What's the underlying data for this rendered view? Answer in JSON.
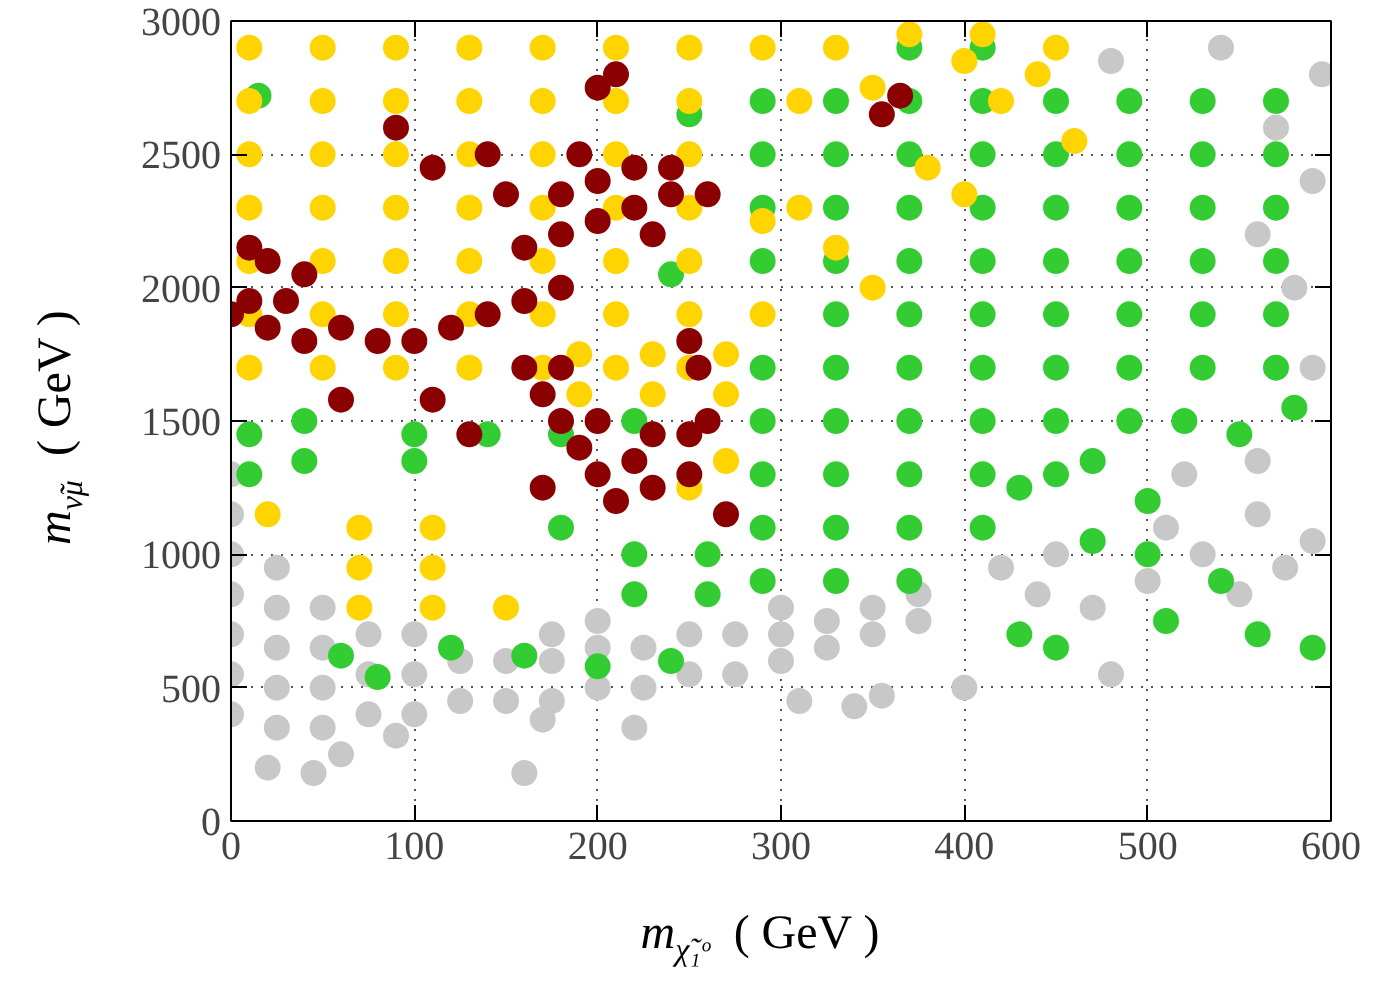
{
  "chart_data": {
    "type": "scatter",
    "xlabel": "m$_{χ̃₁ᵒ}$  ( GeV )",
    "ylabel": "m$_{ν̃μ}$  ( GeV )",
    "xlim": [
      0,
      600
    ],
    "ylim": [
      0,
      3000
    ],
    "xticks": [
      0,
      100,
      200,
      300,
      400,
      500,
      600
    ],
    "yticks": [
      0,
      500,
      1000,
      1500,
      2000,
      2500,
      3000
    ],
    "grid": true,
    "marker": "circle",
    "series": [
      {
        "color": "#c8c8c8",
        "x": [
          0,
          0,
          0,
          0,
          0,
          0,
          0,
          25,
          25,
          25,
          25,
          25,
          50,
          50,
          50,
          50,
          75,
          75,
          75,
          100,
          100,
          100,
          125,
          125,
          150,
          150,
          175,
          175,
          175,
          200,
          200,
          200,
          225,
          225,
          250,
          250,
          275,
          275,
          300,
          300,
          300,
          325,
          325,
          350,
          350,
          375,
          375,
          20,
          45,
          60,
          90,
          160,
          170,
          220,
          310,
          340,
          355,
          400,
          420,
          440,
          450,
          470,
          480,
          500,
          510,
          530,
          550,
          560,
          575,
          590,
          520,
          560,
          590,
          580,
          560,
          590,
          570,
          595,
          540,
          480
        ],
        "values": [
          400,
          550,
          700,
          850,
          1000,
          1150,
          1300,
          350,
          500,
          650,
          800,
          950,
          350,
          500,
          650,
          800,
          400,
          550,
          700,
          400,
          550,
          700,
          450,
          600,
          450,
          600,
          450,
          600,
          700,
          500,
          650,
          750,
          500,
          650,
          550,
          700,
          550,
          700,
          600,
          700,
          800,
          650,
          750,
          700,
          800,
          750,
          850,
          200,
          180,
          250,
          320,
          180,
          380,
          350,
          450,
          430,
          470,
          500,
          950,
          850,
          1000,
          800,
          550,
          900,
          1100,
          1000,
          850,
          1150,
          950,
          1050,
          1300,
          1350,
          1700,
          2000,
          2200,
          2400,
          2600,
          2800,
          2900,
          2850
        ]
      },
      {
        "color": "#33cc33",
        "x": [
          290,
          290,
          290,
          290,
          290,
          290,
          290,
          290,
          330,
          330,
          330,
          330,
          330,
          330,
          330,
          330,
          330,
          370,
          370,
          370,
          370,
          370,
          370,
          370,
          370,
          370,
          370,
          410,
          410,
          410,
          410,
          410,
          410,
          410,
          410,
          410,
          410,
          450,
          450,
          450,
          450,
          450,
          450,
          450,
          450,
          490,
          490,
          490,
          490,
          490,
          490,
          490,
          530,
          530,
          530,
          530,
          530,
          530,
          570,
          570,
          570,
          570,
          570,
          570,
          290,
          330,
          370,
          430,
          470,
          500,
          520,
          550,
          580,
          470,
          500,
          540,
          560,
          590,
          450,
          510,
          430,
          10,
          10,
          40,
          40,
          100,
          140,
          180,
          220,
          100,
          180,
          220,
          260,
          220,
          260,
          15,
          60,
          80,
          120,
          160,
          200,
          240,
          240,
          250
        ],
        "values": [
          1100,
          1300,
          1500,
          1700,
          2100,
          2300,
          2500,
          2700,
          1100,
          1300,
          1500,
          1700,
          1900,
          2100,
          2300,
          2500,
          2700,
          1100,
          1300,
          1500,
          1700,
          1900,
          2100,
          2300,
          2500,
          2700,
          2900,
          1100,
          1300,
          1500,
          1700,
          1900,
          2100,
          2300,
          2500,
          2700,
          2900,
          1300,
          1500,
          1700,
          1900,
          2100,
          2300,
          2500,
          2700,
          1500,
          1700,
          1900,
          2100,
          2300,
          2500,
          2700,
          1700,
          1900,
          2100,
          2300,
          2500,
          2700,
          1700,
          1900,
          2100,
          2300,
          2500,
          2700,
          900,
          900,
          900,
          1250,
          1350,
          1200,
          1500,
          1450,
          1550,
          1050,
          1000,
          900,
          700,
          650,
          650,
          750,
          700,
          1300,
          1450,
          1350,
          1500,
          1450,
          1450,
          1450,
          1500,
          1350,
          1100,
          1000,
          1000,
          850,
          850,
          2720,
          620,
          540,
          650,
          620,
          580,
          600,
          2050,
          2650
        ]
      },
      {
        "color": "#ffd400",
        "x": [
          10,
          10,
          10,
          10,
          10,
          10,
          10,
          50,
          50,
          50,
          50,
          50,
          50,
          50,
          90,
          90,
          90,
          90,
          90,
          90,
          90,
          130,
          130,
          130,
          130,
          130,
          130,
          130,
          170,
          170,
          170,
          170,
          170,
          170,
          170,
          210,
          210,
          210,
          210,
          210,
          210,
          210,
          250,
          250,
          250,
          250,
          250,
          250,
          250,
          70,
          70,
          110,
          110,
          110,
          150,
          70,
          20,
          190,
          230,
          270,
          190,
          230,
          270,
          270,
          250,
          290,
          330,
          370,
          410,
          450,
          400,
          310,
          330,
          350,
          380,
          400,
          310,
          350,
          420,
          440,
          460,
          290,
          290
        ],
        "values": [
          1700,
          1900,
          2100,
          2300,
          2500,
          2700,
          2900,
          1700,
          1900,
          2100,
          2300,
          2500,
          2700,
          2900,
          1700,
          1900,
          2100,
          2300,
          2500,
          2700,
          2900,
          1700,
          1900,
          2100,
          2300,
          2500,
          2700,
          2900,
          1700,
          1900,
          2100,
          2300,
          2500,
          2700,
          2900,
          1700,
          1900,
          2100,
          2300,
          2500,
          2700,
          2900,
          1700,
          1900,
          2100,
          2300,
          2500,
          2700,
          2900,
          800,
          950,
          800,
          950,
          1100,
          800,
          1100,
          1150,
          1600,
          1600,
          1600,
          1750,
          1750,
          1750,
          1350,
          1250,
          2900,
          2900,
          2950,
          2950,
          2900,
          2850,
          2300,
          2150,
          2000,
          2450,
          2350,
          2700,
          2750,
          2700,
          2800,
          2550,
          1900,
          2250
        ]
      },
      {
        "color": "#8b0000",
        "x": [
          0,
          10,
          20,
          30,
          40,
          60,
          80,
          100,
          120,
          140,
          160,
          180,
          160,
          180,
          200,
          220,
          240,
          260,
          200,
          220,
          240,
          180,
          190,
          230,
          20,
          10,
          40,
          90,
          110,
          140,
          150,
          200,
          210,
          355,
          365,
          160,
          170,
          180,
          190,
          200,
          210,
          220,
          230,
          250,
          200,
          180,
          230,
          250,
          260,
          270,
          170,
          130,
          110,
          60,
          250,
          255
        ],
        "values": [
          1900,
          1950,
          1850,
          1950,
          1800,
          1850,
          1800,
          1800,
          1850,
          1900,
          1950,
          2000,
          2150,
          2200,
          2250,
          2300,
          2350,
          2350,
          2400,
          2450,
          2450,
          2350,
          2500,
          2200,
          2100,
          2150,
          2050,
          2600,
          2450,
          2500,
          2350,
          2750,
          2800,
          2650,
          2720,
          1700,
          1600,
          1500,
          1400,
          1300,
          1200,
          1350,
          1250,
          1300,
          1500,
          1700,
          1450,
          1450,
          1500,
          1150,
          1250,
          1450,
          1580,
          1580,
          1800,
          1700
        ]
      }
    ]
  }
}
